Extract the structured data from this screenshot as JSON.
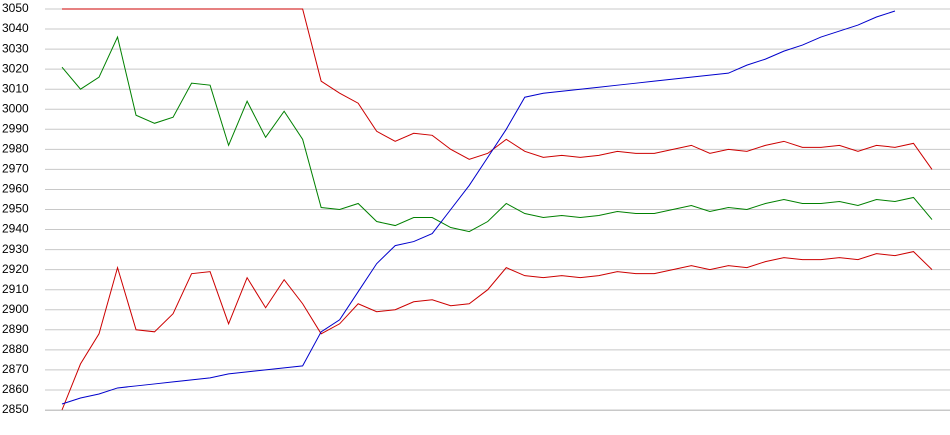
{
  "chart_data": {
    "type": "line",
    "series": [
      {
        "color": "#cc0000",
        "values": [
          3050,
          3050,
          3050,
          3050,
          3050,
          3050,
          3050,
          3050,
          3050,
          3050,
          3050,
          3050,
          3050,
          3050,
          3014,
          3008,
          3003,
          2989,
          2984,
          2988,
          2987,
          2980,
          2975,
          2978,
          2985,
          2979,
          2976,
          2977,
          2976,
          2977,
          2979,
          2978,
          2978,
          2980,
          2982,
          2978,
          2980,
          2979,
          2982,
          2984,
          2981,
          2981,
          2982,
          2979,
          2982,
          2981,
          2983,
          2970
        ]
      },
      {
        "color": "#008000",
        "values": [
          3021,
          3010,
          3016,
          3036,
          2997,
          2993,
          2996,
          3013,
          3012,
          2982,
          3004,
          2986,
          2999,
          2985,
          2951,
          2950,
          2953,
          2944,
          2942,
          2946,
          2946,
          2941,
          2939,
          2944,
          2953,
          2948,
          2946,
          2947,
          2946,
          2947,
          2949,
          2948,
          2948,
          2950,
          2952,
          2949,
          2951,
          2950,
          2953,
          2955,
          2953,
          2953,
          2954,
          2952,
          2955,
          2954,
          2956,
          2945
        ]
      },
      {
        "color": "#cc0000",
        "values": [
          2850,
          2873,
          2888,
          2921,
          2890,
          2889,
          2898,
          2918,
          2919,
          2893,
          2916,
          2901,
          2915,
          2903,
          2888,
          2893,
          2903,
          2899,
          2900,
          2904,
          2905,
          2902,
          2903,
          2910,
          2921,
          2917,
          2916,
          2917,
          2916,
          2917,
          2919,
          2918,
          2918,
          2920,
          2922,
          2920,
          2922,
          2921,
          2924,
          2926,
          2925,
          2925,
          2926,
          2925,
          2928,
          2927,
          2929,
          2920
        ]
      },
      {
        "color": "#0000cc",
        "values": [
          2853,
          2856,
          2858,
          2861,
          2862,
          2863,
          2864,
          2865,
          2866,
          2868,
          2869,
          2870,
          2871,
          2872,
          2889,
          2895,
          2909,
          2923,
          2932,
          2934,
          2938,
          2950,
          2962,
          2976,
          2990,
          3006,
          3008,
          3009,
          3010,
          3011,
          3012,
          3013,
          3014,
          3015,
          3016,
          3017,
          3018,
          3022,
          3025,
          3029,
          3032,
          3036,
          3039,
          3042,
          3046,
          3049
        ]
      }
    ],
    "ylim": [
      2850,
      3050
    ],
    "yticks": [
      2850,
      2860,
      2870,
      2880,
      2890,
      2900,
      2910,
      2920,
      2930,
      2940,
      2950,
      2960,
      2970,
      2980,
      2990,
      3000,
      3010,
      3020,
      3030,
      3040,
      3050
    ],
    "grid": true
  }
}
